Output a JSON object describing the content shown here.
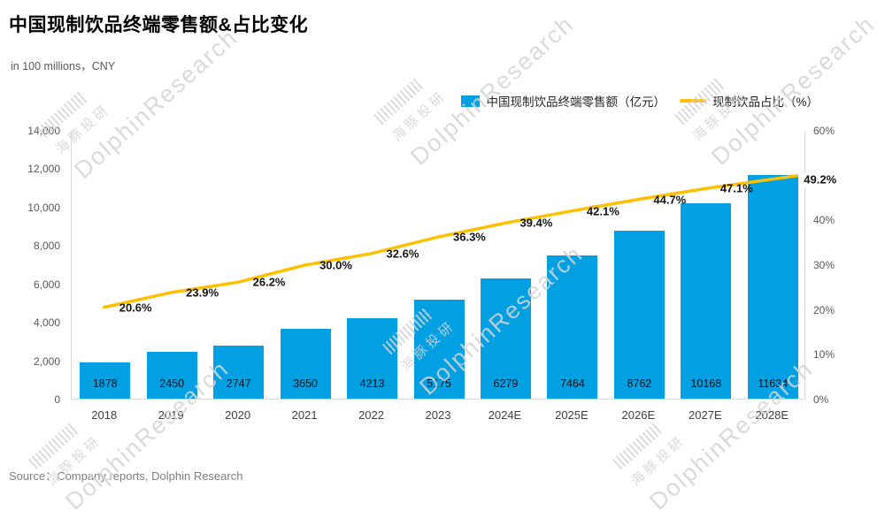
{
  "header": {
    "title": "中国现制饮品终端零售额&占比变化",
    "subtitle": "in 100 millions，CNY"
  },
  "legend": [
    {
      "type": "bar",
      "label": "中国现制饮品终端零售额（亿元）",
      "color": "#00A0E3"
    },
    {
      "type": "line",
      "label": "现制饮品占比（%）",
      "color": "#FFC000"
    }
  ],
  "chart_data": {
    "type": "bar+line",
    "title": "中国现制饮品终端零售额&占比变化",
    "categories": [
      "2018",
      "2019",
      "2020",
      "2021",
      "2022",
      "2023",
      "2024E",
      "2025E",
      "2026E",
      "2027E",
      "2028E"
    ],
    "series": [
      {
        "name": "中国现制饮品终端零售额（亿元）",
        "type": "bar",
        "axis": "left",
        "color": "#00A0E3",
        "values": [
          1878,
          2450,
          2747,
          3650,
          4213,
          5175,
          6279,
          7464,
          8762,
          10168,
          11634
        ]
      },
      {
        "name": "现制饮品占比（%）",
        "type": "line",
        "axis": "right",
        "color": "#FFC000",
        "values": [
          20.6,
          23.9,
          26.2,
          30.0,
          32.6,
          36.3,
          39.4,
          42.1,
          44.7,
          47.1,
          49.2
        ]
      }
    ],
    "left_axis": {
      "min": 0,
      "max": 14000,
      "step": 2000,
      "ticks": [
        "14,000",
        "12,000",
        "10,000",
        "8,000",
        "6,000",
        "4,000",
        "2,000",
        "0"
      ]
    },
    "right_axis": {
      "min": 0,
      "max": 60,
      "step": 10,
      "ticks": [
        "60%",
        "50%",
        "40%",
        "30%",
        "20%",
        "10%",
        "0%"
      ]
    },
    "grid": false,
    "legend_position": "top-right"
  },
  "source": "Source：Company reports, Dolphin Research",
  "watermark": {
    "cn": "海豚投研",
    "en": "DolphinResearch"
  }
}
